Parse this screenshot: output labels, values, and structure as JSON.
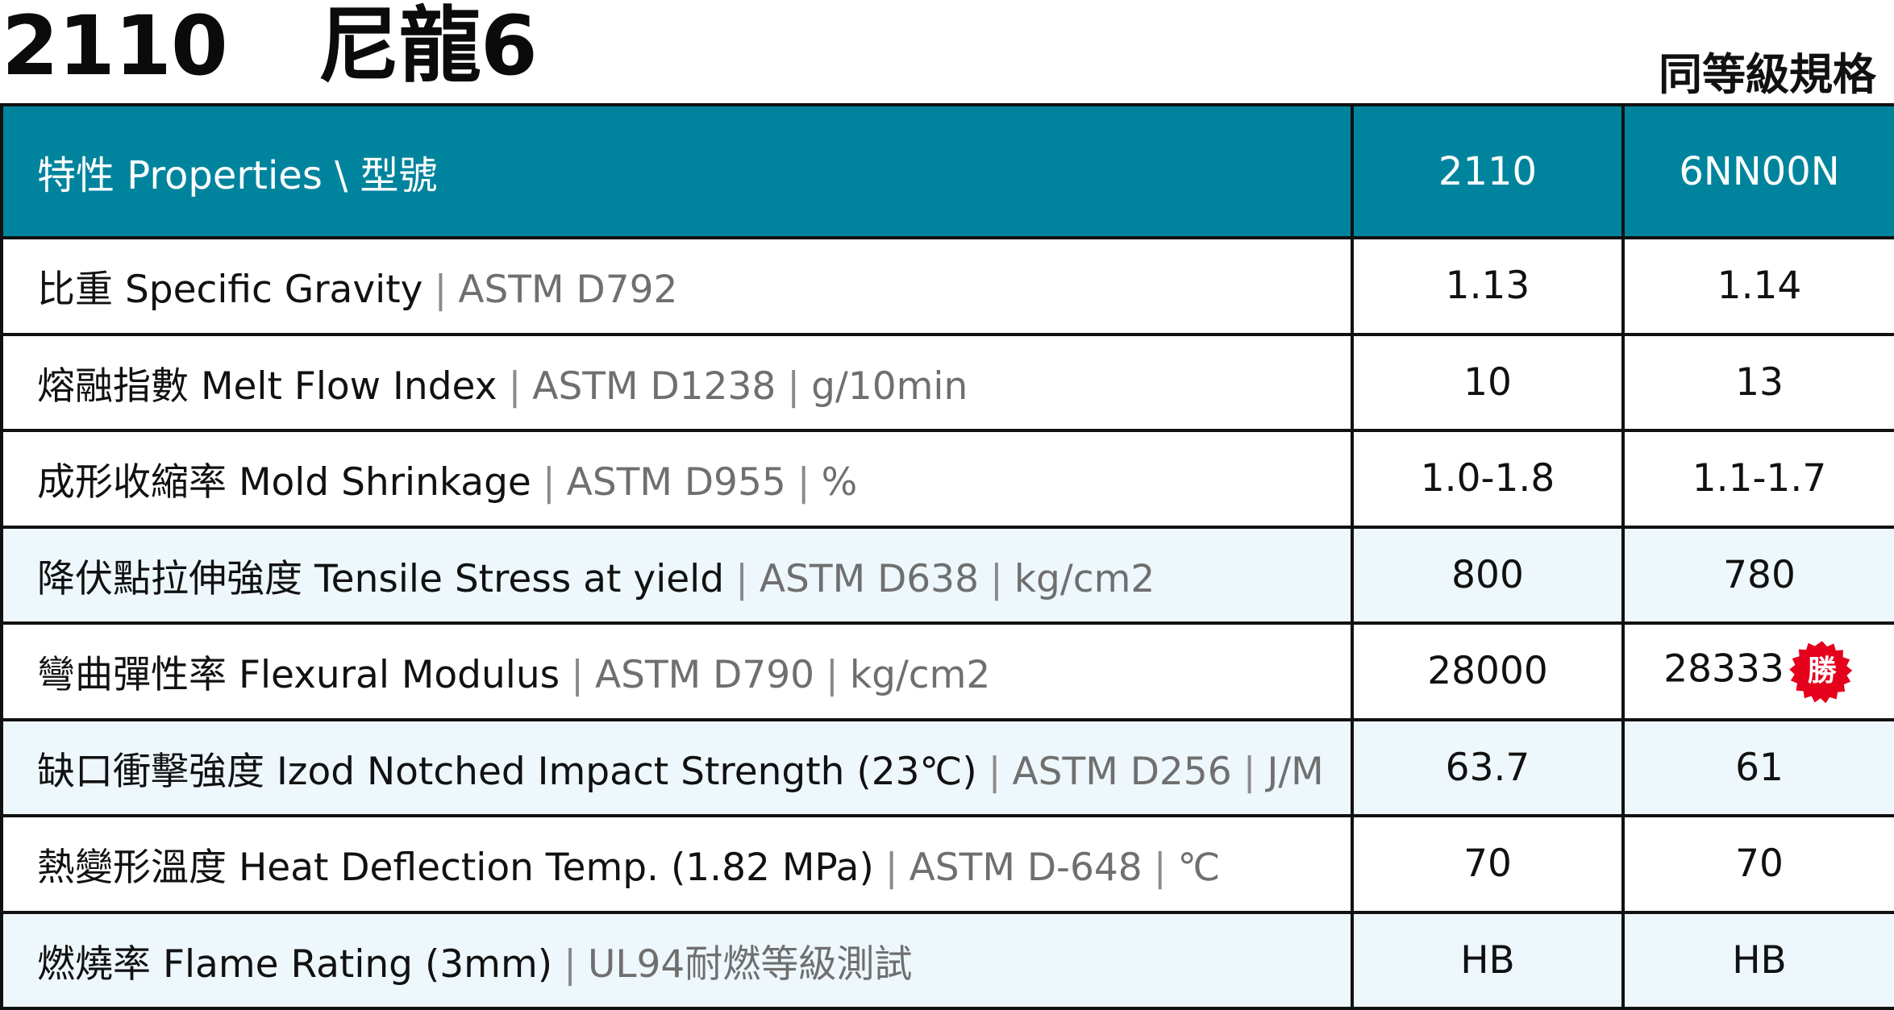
{
  "header": {
    "model_code": "2110",
    "material": "尼龍6",
    "equivalent_label": "同等級規格"
  },
  "table": {
    "columns": [
      "特性 Properties \\ 型號",
      "2110",
      "6NN00N"
    ],
    "rows": [
      {
        "name": "比重 Specific Gravity",
        "method": "ASTM D792",
        "unit": "",
        "v1": "1.13",
        "v2": "1.14"
      },
      {
        "name": "熔融指數 Melt Flow Index",
        "method": "ASTM D1238",
        "unit": "g/10min",
        "v1": "10",
        "v2": "13"
      },
      {
        "name": "成形收縮率 Mold Shrinkage",
        "method": "ASTM D955",
        "unit": "%",
        "v1": "1.0-1.8",
        "v2": "1.1-1.7"
      },
      {
        "name": "降伏點拉伸強度 Tensile Stress at yield",
        "method": "ASTM D638",
        "unit": "kg/cm2",
        "v1": "800",
        "v2": "780"
      },
      {
        "name": "彎曲彈性率 Flexural Modulus",
        "method": "ASTM D790",
        "unit": "kg/cm2",
        "v1": "28000",
        "v2": "28333",
        "badge": "勝"
      },
      {
        "name": "缺口衝擊強度 Izod Notched Impact Strength (23℃)",
        "method": "ASTM D256",
        "unit": "J/M",
        "v1": "63.7",
        "v2": "61"
      },
      {
        "name": "熱變形溫度 Heat Deflection Temp. (1.82 MPa)",
        "method": "ASTM D-648",
        "unit": "℃",
        "v1": "70",
        "v2": "70"
      },
      {
        "name": "燃燒率 Flame Rating (3mm)",
        "method": "UL94耐燃等級測試",
        "unit": "",
        "v1": "HB",
        "v2": "HB"
      }
    ]
  },
  "colors": {
    "header_bg": "#00849d",
    "alt_row_bg": "#eef7fc",
    "badge_red": "#e5001c"
  },
  "separator": "|"
}
